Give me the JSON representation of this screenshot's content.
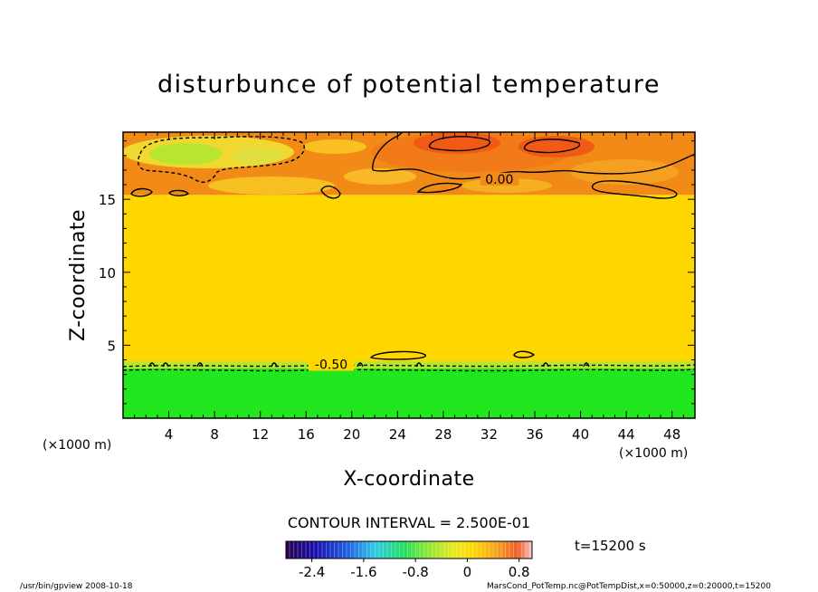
{
  "chart_data": {
    "type": "heatmap",
    "title": "disturbunce of potential temperature",
    "xlabel": "X-coordinate",
    "ylabel": "Z-coordinate",
    "x_unit": "(×1000 m)",
    "y_unit": "(×1000 m)",
    "xlim": [
      0,
      50
    ],
    "ylim": [
      0,
      19.6
    ],
    "xticks": [
      4,
      8,
      12,
      16,
      20,
      24,
      28,
      32,
      36,
      40,
      44,
      48
    ],
    "yticks": [
      5,
      10,
      15
    ],
    "contour_interval_text": "CONTOUR INTERVAL = 2.500E-01",
    "contour_labels": [
      {
        "text": "0.00",
        "x": 32.9,
        "z": 16.2
      },
      {
        "text": "-0.50",
        "x": 18.2,
        "z": 3.5
      }
    ],
    "colorbar": {
      "min": -2.8,
      "max": 1.0,
      "ticks": [
        "-2.4",
        "-1.6",
        "-0.8",
        "0",
        "0.8"
      ],
      "tick_values": [
        -2.4,
        -1.6,
        -0.8,
        0,
        0.8
      ]
    },
    "regions": [
      {
        "name": "lower layer",
        "z_range": [
          0,
          3.6
        ],
        "level": -0.75
      },
      {
        "name": "middle layer",
        "z_range": [
          3.6,
          15.3
        ],
        "level": 0.05
      },
      {
        "name": "upper layer",
        "z_range": [
          15.3,
          19.6
        ],
        "level": 0.1
      }
    ],
    "time_label": "t=15200 s",
    "footer_left": "/usr/bin/gpview   2008-10-18",
    "footer_right": "MarsCond_PotTemp.nc@PotTempDist,x=0:50000,z=0:20000,t=15200",
    "colors": {
      "middle": "#FFD700",
      "lower": "#22E61E",
      "warm": "#F28A18",
      "hot": "#F05A14",
      "cool": "#B8E630"
    }
  }
}
